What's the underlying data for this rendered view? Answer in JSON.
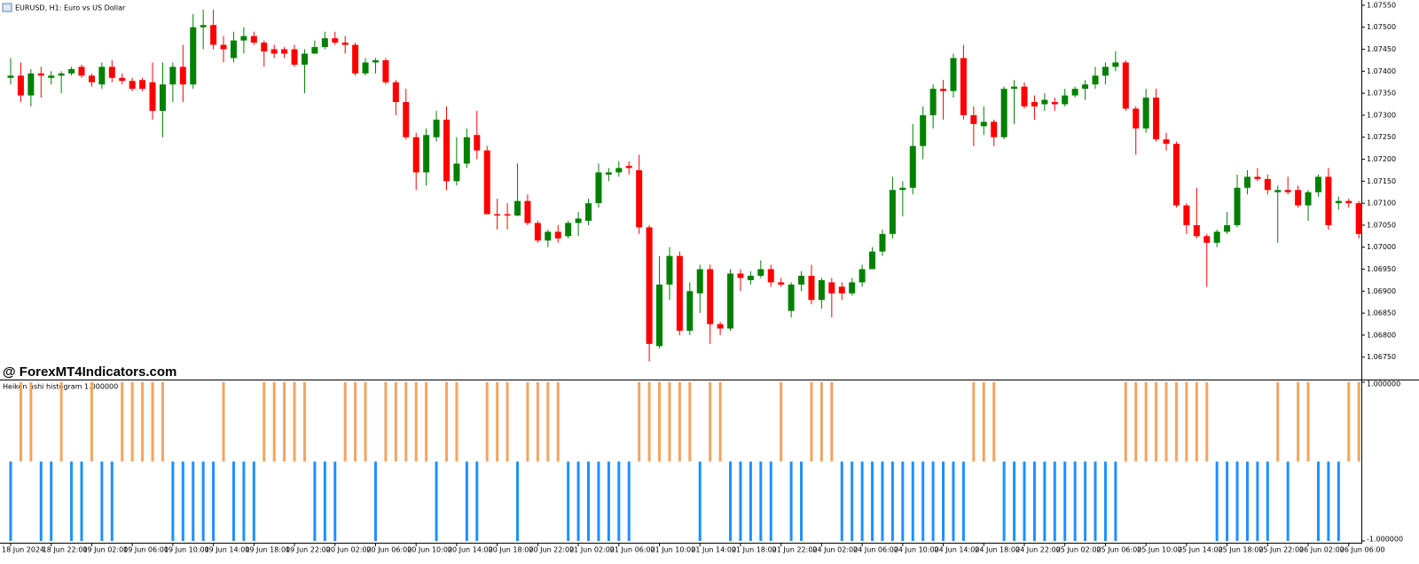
{
  "chart_data": [
    {
      "type": "candlestick",
      "title": "EURUSD, H1:  Euro vs US Dollar",
      "watermark": "@ ForexMT4Indicators.com",
      "bull_color": "#008000",
      "bear_color": "#ff0000",
      "categories": [
        "18 Jun 2024",
        null,
        null,
        null,
        "18 Jun 22:00",
        null,
        null,
        null,
        "19 Jun 02:00",
        null,
        null,
        null,
        "19 Jun 06:00",
        null,
        null,
        null,
        "19 Jun 10:00",
        null,
        null,
        null,
        "19 Jun 14:00",
        null,
        null,
        null,
        "19 Jun 18:00",
        null,
        null,
        null,
        "19 Jun 22:00",
        null,
        null,
        null,
        "20 Jun 02:00",
        null,
        null,
        null,
        "20 Jun 06:00",
        null,
        null,
        null,
        "20 Jun 10:00",
        null,
        null,
        null,
        "20 Jun 14:00",
        null,
        null,
        null,
        "20 Jun 18:00",
        null,
        null,
        null,
        "20 Jun 22:00",
        null,
        null,
        null,
        "21 Jun 02:00",
        null,
        null,
        null,
        "21 Jun 06:00",
        null,
        null,
        null,
        "21 Jun 10:00",
        null,
        null,
        null,
        "21 Jun 14:00",
        null,
        null,
        null,
        "21 Jun 18:00",
        null,
        null,
        null,
        "21 Jun 22:00",
        null,
        null,
        null,
        "24 Jun 02:00",
        null,
        null,
        null,
        "24 Jun 06:00",
        null,
        null,
        null,
        "24 Jun 10:00",
        null,
        null,
        null,
        "24 Jun 14:00",
        null,
        null,
        null,
        "24 Jun 18:00",
        null,
        null,
        null,
        "24 Jun 22:00",
        null,
        null,
        null,
        "25 Jun 02:00",
        null,
        null,
        null,
        "25 Jun 06:00",
        null,
        null,
        null,
        "25 Jun 10:00",
        null,
        null,
        null,
        "25 Jun 14:00",
        null,
        null,
        null,
        "25 Jun 18:00",
        null,
        null,
        null,
        "25 Jun 22:00",
        null,
        null,
        null,
        "26 Jun 02:00",
        null,
        null,
        null,
        "26 Jun 06:00",
        null
      ],
      "open": [
        1.07385,
        1.0739,
        1.07345,
        1.07395,
        1.07385,
        1.0739,
        1.07395,
        1.0741,
        1.0739,
        1.0737,
        1.0741,
        1.07385,
        1.07378,
        1.0738,
        1.07375,
        1.0731,
        1.0737,
        1.0741,
        1.0737,
        1.075,
        1.07505,
        1.0746,
        1.0743,
        1.0747,
        1.0748,
        1.07465,
        1.0745,
        1.0745,
        1.0745,
        1.07415,
        1.0744,
        1.07455,
        1.07475,
        1.07465,
        1.0746,
        1.07395,
        1.0742,
        1.07425,
        1.07375,
        1.0733,
        1.0725,
        1.0717,
        1.0725,
        1.0729,
        1.0715,
        1.0719,
        1.07255,
        1.0722,
        1.07075,
        1.07075,
        1.07072,
        1.07105,
        1.07055,
        1.07015,
        1.07035,
        1.07025,
        1.07055,
        1.0706,
        1.071,
        1.07165,
        1.0717,
        1.07185,
        1.07175,
        1.07045,
        1.06775,
        1.06915,
        1.0698,
        1.0681,
        1.06895,
        1.0695,
        1.06825,
        1.06815,
        1.0694,
        1.06925,
        1.06935,
        1.0695,
        1.0692,
        1.06855,
        1.06915,
        1.06935,
        1.0688,
        1.0692,
        1.0691,
        1.06895,
        1.0692,
        1.0695,
        1.0699,
        1.0703,
        1.0713,
        1.07135,
        1.0723,
        1.073,
        1.0736,
        1.07355,
        1.0743,
        1.073,
        1.07275,
        1.07285,
        1.0725,
        1.0736,
        1.07365,
        1.0733,
        1.07325,
        1.0733,
        1.07325,
        1.07345,
        1.0736,
        1.0737,
        1.0739,
        1.0741,
        1.0742,
        1.07315,
        1.0727,
        1.0734,
        1.07245,
        1.07235,
        1.07095,
        1.0705,
        1.07025,
        1.0701,
        1.07035,
        1.0705,
        1.07135,
        1.0716,
        1.07155,
        1.07125,
        1.0713,
        1.0713,
        1.07095,
        1.07125,
        1.0716,
        1.071,
        1.07105,
        1.071
      ],
      "high": [
        1.0743,
        1.0742,
        1.07405,
        1.0741,
        1.074,
        1.074,
        1.0741,
        1.07415,
        1.07395,
        1.0742,
        1.07425,
        1.07395,
        1.07385,
        1.07385,
        1.0742,
        1.0742,
        1.0742,
        1.0746,
        1.0753,
        1.0754,
        1.0754,
        1.0748,
        1.0749,
        1.075,
        1.0749,
        1.0747,
        1.0746,
        1.07455,
        1.0746,
        1.0745,
        1.0747,
        1.0749,
        1.0749,
        1.0748,
        1.07465,
        1.0743,
        1.0743,
        1.0743,
        1.0738,
        1.0736,
        1.0726,
        1.0727,
        1.0731,
        1.0732,
        1.0725,
        1.0727,
        1.0731,
        1.0723,
        1.0711,
        1.071,
        1.0719,
        1.0712,
        1.0706,
        1.0704,
        1.0705,
        1.0706,
        1.0708,
        1.0711,
        1.0719,
        1.0718,
        1.07195,
        1.07195,
        1.0721,
        1.0705,
        1.0698,
        1.07,
        1.0699,
        1.0692,
        1.0696,
        1.0696,
        1.0683,
        1.0695,
        1.0695,
        1.06945,
        1.0697,
        1.0696,
        1.0693,
        1.0692,
        1.06945,
        1.0696,
        1.0693,
        1.0693,
        1.0692,
        1.0693,
        1.0696,
        1.07,
        1.0704,
        1.0716,
        1.0715,
        1.0728,
        1.0732,
        1.0737,
        1.0738,
        1.0744,
        1.0746,
        1.0732,
        1.0732,
        1.0729,
        1.07365,
        1.0738,
        1.07375,
        1.07345,
        1.0735,
        1.0734,
        1.0736,
        1.07365,
        1.0738,
        1.0741,
        1.0742,
        1.07445,
        1.07425,
        1.0732,
        1.0736,
        1.0736,
        1.0726,
        1.0724,
        1.071,
        1.07135,
        1.0703,
        1.0704,
        1.0708,
        1.07165,
        1.07175,
        1.0718,
        1.07165,
        1.0714,
        1.0716,
        1.0714,
        1.0713,
        1.07165,
        1.0718,
        1.07115,
        1.0711,
        1.07105
      ],
      "low": [
        1.0737,
        1.0733,
        1.0732,
        1.0734,
        1.0737,
        1.0735,
        1.0739,
        1.07385,
        1.07365,
        1.0736,
        1.07375,
        1.0737,
        1.07355,
        1.07355,
        1.0729,
        1.0725,
        1.0733,
        1.0733,
        1.0736,
        1.0745,
        1.0745,
        1.0742,
        1.0742,
        1.0744,
        1.0746,
        1.0741,
        1.0743,
        1.0743,
        1.0741,
        1.0735,
        1.0744,
        1.0745,
        1.0746,
        1.0744,
        1.0739,
        1.0739,
        1.07395,
        1.0737,
        1.073,
        1.07245,
        1.0713,
        1.0714,
        1.0724,
        1.0713,
        1.0714,
        1.0718,
        1.072,
        1.07075,
        1.0704,
        1.0704,
        1.0707,
        1.0705,
        1.0701,
        1.07,
        1.0701,
        1.0702,
        1.07025,
        1.0705,
        1.0709,
        1.0715,
        1.0716,
        1.07165,
        1.0703,
        1.0674,
        1.0677,
        1.0688,
        1.068,
        1.068,
        1.0685,
        1.0678,
        1.068,
        1.0681,
        1.069,
        1.06915,
        1.0693,
        1.0691,
        1.0691,
        1.0684,
        1.069,
        1.0687,
        1.0686,
        1.0684,
        1.0688,
        1.0689,
        1.0691,
        1.0695,
        1.0698,
        1.0702,
        1.0707,
        1.0712,
        1.072,
        1.0727,
        1.0729,
        1.0734,
        1.0729,
        1.0723,
        1.07255,
        1.0723,
        1.07245,
        1.0728,
        1.07315,
        1.0729,
        1.0731,
        1.0731,
        1.0732,
        1.0734,
        1.07335,
        1.0736,
        1.0737,
        1.074,
        1.0731,
        1.0721,
        1.0726,
        1.0724,
        1.0722,
        1.0709,
        1.0703,
        1.0702,
        1.0691,
        1.07,
        1.0703,
        1.07045,
        1.0712,
        1.0715,
        1.0712,
        1.0701,
        1.0712,
        1.0709,
        1.0706,
        1.07115,
        1.0704,
        1.07085,
        1.0709,
        1.0702
      ],
      "close": [
        1.0739,
        1.07345,
        1.07395,
        1.0739,
        1.0739,
        1.07395,
        1.07405,
        1.0739,
        1.07375,
        1.0741,
        1.07385,
        1.07378,
        1.0736,
        1.0736,
        1.0731,
        1.0737,
        1.0741,
        1.0737,
        1.075,
        1.07505,
        1.0746,
        1.0745,
        1.0747,
        1.0748,
        1.07465,
        1.07445,
        1.0744,
        1.0744,
        1.07415,
        1.0744,
        1.07455,
        1.07475,
        1.07465,
        1.0746,
        1.07395,
        1.0742,
        1.07425,
        1.07375,
        1.0733,
        1.0725,
        1.0717,
        1.07255,
        1.0729,
        1.0715,
        1.0719,
        1.0725,
        1.0722,
        1.07075,
        1.07072,
        1.07072,
        1.07105,
        1.07055,
        1.07015,
        1.07035,
        1.0702,
        1.07055,
        1.07065,
        1.071,
        1.0717,
        1.0717,
        1.0718,
        1.0718,
        1.07045,
        1.0678,
        1.06915,
        1.0698,
        1.0681,
        1.069,
        1.0695,
        1.06825,
        1.06815,
        1.0694,
        1.0693,
        1.06935,
        1.0695,
        1.0692,
        1.06915,
        1.06915,
        1.06935,
        1.0688,
        1.06925,
        1.06895,
        1.06895,
        1.0692,
        1.0695,
        1.0699,
        1.0703,
        1.0713,
        1.07135,
        1.0723,
        1.073,
        1.0736,
        1.07355,
        1.0743,
        1.073,
        1.0728,
        1.07285,
        1.0725,
        1.0736,
        1.07365,
        1.0732,
        1.0732,
        1.07335,
        1.07325,
        1.07345,
        1.0736,
        1.0737,
        1.0739,
        1.0741,
        1.0742,
        1.07315,
        1.0727,
        1.0734,
        1.07245,
        1.07235,
        1.07095,
        1.0705,
        1.07025,
        1.0701,
        1.07035,
        1.0705,
        1.07135,
        1.0716,
        1.07155,
        1.0713,
        1.0713,
        1.07125,
        1.07095,
        1.07125,
        1.0716,
        1.0705,
        1.07105,
        1.071,
        1.0703
      ],
      "ylim": [
        1.06699,
        1.07562
      ],
      "yticks": [
        {
          "value": 1.0755,
          "label": "1.07550"
        },
        {
          "value": 1.075,
          "label": "1.07500"
        },
        {
          "value": 1.0745,
          "label": "1.07450"
        },
        {
          "value": 1.074,
          "label": "1.07400"
        },
        {
          "value": 1.0735,
          "label": "1.07350"
        },
        {
          "value": 1.073,
          "label": "1.07300"
        },
        {
          "value": 1.0725,
          "label": "1.07250"
        },
        {
          "value": 1.072,
          "label": "1.07200"
        },
        {
          "value": 1.0715,
          "label": "1.07150"
        },
        {
          "value": 1.071,
          "label": "1.07100"
        },
        {
          "value": 1.0705,
          "label": "1.07050"
        },
        {
          "value": 1.07,
          "label": "1.07000"
        },
        {
          "value": 1.0695,
          "label": "1.06950"
        },
        {
          "value": 1.069,
          "label": "1.06900"
        },
        {
          "value": 1.0685,
          "label": "1.06850"
        },
        {
          "value": 1.068,
          "label": "1.06800"
        },
        {
          "value": 1.0675,
          "label": "1.06750"
        }
      ]
    },
    {
      "type": "histogram",
      "title": "Heiken ashi histogram 1.000000",
      "up_color": "#f4a460",
      "down_color": "#1e90ff",
      "values": [
        -1,
        1,
        1,
        -1,
        -1,
        1,
        -1,
        -1,
        1,
        -1,
        -1,
        1,
        1,
        1,
        1,
        1,
        -1,
        -1,
        -1,
        -1,
        -1,
        1,
        -1,
        -1,
        -1,
        1,
        1,
        1,
        1,
        1,
        -1,
        -1,
        -1,
        1,
        1,
        1,
        -1,
        1,
        1,
        1,
        1,
        1,
        -1,
        1,
        1,
        -1,
        -1,
        1,
        1,
        1,
        -1,
        1,
        1,
        1,
        1,
        -1,
        -1,
        -1,
        -1,
        -1,
        -1,
        -1,
        1,
        1,
        1,
        1,
        1,
        1,
        -1,
        1,
        1,
        -1,
        -1,
        -1,
        -1,
        -1,
        1,
        -1,
        -1,
        1,
        1,
        1,
        -1,
        -1,
        -1,
        -1,
        -1,
        -1,
        -1,
        -1,
        -1,
        -1,
        -1,
        -1,
        -1,
        1,
        1,
        1,
        -1,
        -1,
        -1,
        -1,
        -1,
        -1,
        -1,
        -1,
        -1,
        -1,
        -1,
        -1,
        1,
        1,
        1,
        1,
        1,
        1,
        1,
        1,
        1,
        -1,
        -1,
        -1,
        -1,
        -1,
        -1,
        1,
        -1,
        1,
        1,
        -1,
        -1,
        -1,
        1,
        1
      ],
      "ylim": [
        -1,
        1
      ],
      "yticks": [
        {
          "value": 1,
          "label": "1.000000"
        },
        {
          "value": -1,
          "label": "-1.000000"
        }
      ]
    }
  ]
}
